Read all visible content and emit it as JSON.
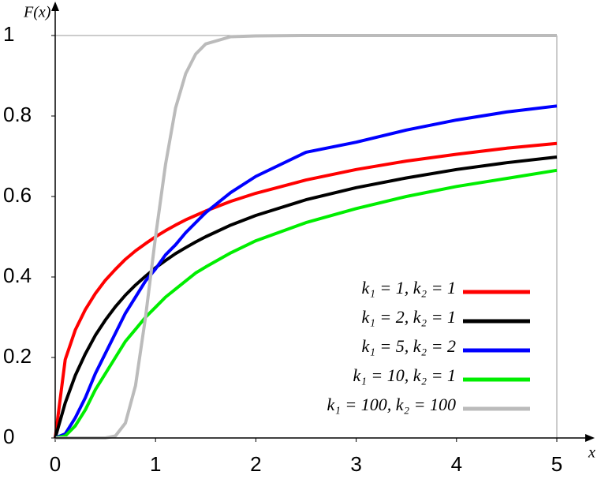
{
  "chart_data": {
    "type": "line",
    "y_label": "F(x)",
    "x_label": "x",
    "x": [
      0,
      0.1,
      0.2,
      0.3,
      0.4,
      0.5,
      0.6,
      0.7,
      0.8,
      0.9,
      1,
      1.1,
      1.2,
      1.3,
      1.4,
      1.5,
      1.75,
      2,
      2.5,
      3,
      3.5,
      4,
      4.5,
      5
    ],
    "series": [
      {
        "name": "k₁ = 1,  k₂ = 1",
        "color": "#ff0000",
        "values": [
          0,
          0.195,
          0.268,
          0.319,
          0.359,
          0.392,
          0.419,
          0.444,
          0.465,
          0.483,
          0.5,
          0.515,
          0.529,
          0.542,
          0.553,
          0.564,
          0.588,
          0.608,
          0.641,
          0.667,
          0.688,
          0.705,
          0.72,
          0.732
        ]
      },
      {
        "name": "k₁ = 2,  k₂ = 1",
        "color": "#000000",
        "values": [
          0,
          0.087,
          0.155,
          0.209,
          0.255,
          0.293,
          0.326,
          0.355,
          0.38,
          0.402,
          0.423,
          0.441,
          0.458,
          0.473,
          0.487,
          0.5,
          0.529,
          0.553,
          0.592,
          0.622,
          0.646,
          0.667,
          0.684,
          0.698
        ]
      },
      {
        "name": "k₁ = 5,  k₂ = 2",
        "color": "#0000ff",
        "values": [
          0,
          0.01,
          0.05,
          0.1,
          0.16,
          0.21,
          0.26,
          0.31,
          0.35,
          0.39,
          0.42,
          0.455,
          0.48,
          0.51,
          0.535,
          0.56,
          0.61,
          0.65,
          0.71,
          0.735,
          0.765,
          0.79,
          0.81,
          0.825
        ]
      },
      {
        "name": "k₁ = 10,  k₂ = 1",
        "color": "#00ee00",
        "values": [
          0,
          0.005,
          0.03,
          0.07,
          0.12,
          0.16,
          0.2,
          0.24,
          0.27,
          0.3,
          0.325,
          0.35,
          0.37,
          0.39,
          0.41,
          0.425,
          0.46,
          0.49,
          0.535,
          0.57,
          0.6,
          0.625,
          0.645,
          0.665
        ]
      },
      {
        "name": "k₁ = 100, k₂ = 100",
        "color": "#bbbbbb",
        "values": [
          0,
          0,
          0,
          0,
          0,
          0,
          0.005,
          0.037,
          0.13,
          0.3,
          0.5,
          0.68,
          0.82,
          0.905,
          0.954,
          0.979,
          0.997,
          0.999,
          1,
          1,
          1,
          1,
          1,
          1
        ]
      }
    ],
    "xlim": [
      0,
      5
    ],
    "ylim": [
      0,
      1
    ],
    "xticks": [
      0,
      1,
      2,
      3,
      4,
      5
    ],
    "yticks": [
      0,
      0.2,
      0.4,
      0.6,
      0.8,
      1
    ],
    "legend": "lower right"
  }
}
